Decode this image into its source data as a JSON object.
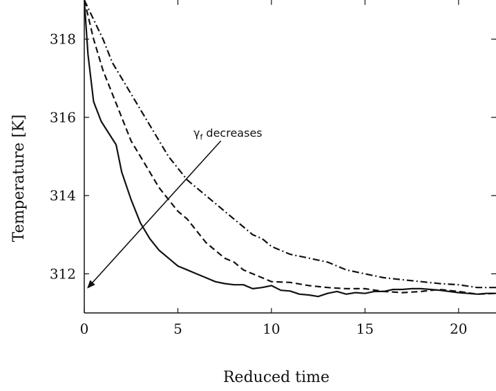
{
  "chart_data": {
    "type": "line",
    "title": "",
    "xlabel": "Reduced time",
    "ylabel": "Temperature [K]",
    "xlim": [
      0,
      22
    ],
    "ylim": [
      311,
      319
    ],
    "xticks": [
      0,
      5,
      10,
      15,
      20
    ],
    "yticks": [
      312,
      314,
      316,
      318
    ],
    "grid": false,
    "legend": "none",
    "series": [
      {
        "style": "solid",
        "color": "#111111",
        "x": [
          0,
          0.2,
          0.5,
          0.9,
          1.3,
          1.7,
          2.0,
          2.5,
          3.0,
          3.5,
          4.0,
          4.5,
          5.0,
          5.5,
          6.0,
          6.5,
          7.0,
          7.5,
          8.0,
          8.5,
          9.0,
          9.5,
          10.0,
          10.5,
          11.0,
          11.5,
          12.0,
          12.5,
          13.0,
          13.5,
          14.0,
          14.5,
          15.0,
          15.5,
          16.0,
          16.5,
          17.0,
          17.5,
          18.0,
          18.5,
          19.0,
          19.5,
          20.0,
          20.5,
          21.0,
          21.5,
          22.0
        ],
        "y": [
          319.0,
          317.6,
          316.4,
          315.9,
          315.6,
          315.3,
          314.6,
          313.9,
          313.3,
          312.9,
          312.6,
          312.4,
          312.2,
          312.1,
          312.0,
          311.9,
          311.8,
          311.75,
          311.72,
          311.72,
          311.62,
          311.65,
          311.7,
          311.58,
          311.56,
          311.48,
          311.46,
          311.42,
          311.5,
          311.55,
          311.48,
          311.52,
          311.5,
          311.55,
          311.55,
          311.6,
          311.6,
          311.62,
          311.62,
          311.6,
          311.58,
          311.55,
          311.52,
          311.5,
          311.48,
          311.5,
          311.5
        ]
      },
      {
        "style": "dashed",
        "color": "#111111",
        "x": [
          0,
          0.5,
          1.0,
          1.5,
          2.0,
          2.5,
          3.0,
          3.5,
          4.0,
          4.5,
          5.0,
          5.5,
          6.0,
          6.5,
          7.0,
          7.5,
          8.0,
          8.5,
          9.0,
          9.5,
          10.0,
          11.0,
          12.0,
          13.0,
          14.0,
          15.0,
          16.0,
          17.0,
          18.0,
          19.0,
          20.0,
          21.0,
          22.0
        ],
        "y": [
          319.0,
          318.0,
          317.2,
          316.6,
          316.0,
          315.4,
          315.0,
          314.6,
          314.2,
          313.9,
          313.6,
          313.4,
          313.1,
          312.8,
          312.6,
          312.4,
          312.3,
          312.1,
          312.0,
          311.9,
          311.8,
          311.78,
          311.7,
          311.65,
          311.62,
          311.62,
          311.55,
          311.52,
          311.55,
          311.6,
          311.55,
          311.48,
          311.5
        ]
      },
      {
        "style": "dashdot",
        "color": "#111111",
        "x": [
          0,
          0.5,
          1.0,
          1.5,
          2.0,
          2.5,
          3.0,
          3.5,
          4.0,
          4.5,
          5.0,
          5.5,
          6.0,
          6.5,
          7.0,
          7.5,
          8.0,
          8.5,
          9.0,
          9.5,
          10.0,
          11.0,
          12.0,
          13.0,
          14.0,
          15.0,
          16.0,
          17.0,
          18.0,
          19.0,
          20.0,
          21.0,
          22.0
        ],
        "y": [
          319.0,
          318.5,
          318.0,
          317.4,
          317.0,
          316.6,
          316.2,
          315.8,
          315.4,
          315.0,
          314.7,
          314.4,
          314.2,
          314.0,
          313.8,
          313.6,
          313.4,
          313.2,
          313.0,
          312.9,
          312.7,
          312.5,
          312.4,
          312.3,
          312.1,
          312.0,
          311.9,
          311.85,
          311.8,
          311.75,
          311.72,
          311.65,
          311.65
        ]
      }
    ],
    "annotations": [
      {
        "text_main": "γ",
        "text_sub": "f",
        "text_rest": " decreases",
        "arrow_from": [
          7.3,
          315.4
        ],
        "arrow_to": [
          0.2,
          311.65
        ]
      }
    ]
  }
}
